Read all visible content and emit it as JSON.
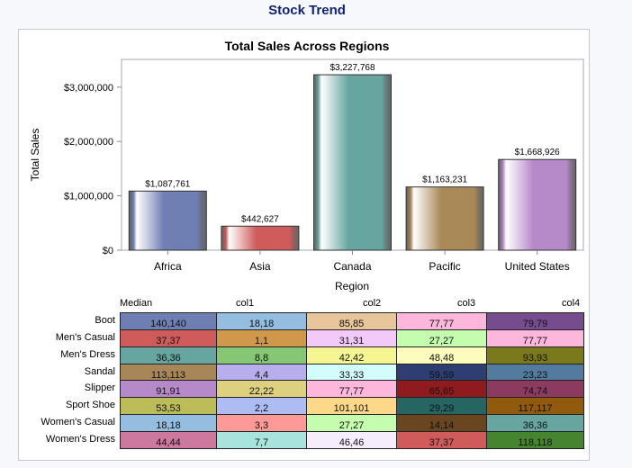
{
  "page_title": "Stock Trend",
  "chart_data": {
    "type": "bar",
    "title": "Total Sales Across Regions",
    "xlabel": "Region",
    "ylabel": "Total Sales",
    "categories": [
      "Africa",
      "Asia",
      "Canada",
      "Pacific",
      "United States"
    ],
    "values": [
      1087761,
      442627,
      3227768,
      1163231,
      1668926
    ],
    "value_labels": [
      "$1,087,761",
      "$442,627",
      "$3,227,768",
      "$1,163,231",
      "$1,668,926"
    ],
    "colors": [
      "#6f7eb3",
      "#d05b5b",
      "#66a5a0",
      "#a98958",
      "#b689c9"
    ],
    "yticks": [
      0,
      1000000,
      2000000,
      3000000
    ],
    "ytick_labels": [
      "$0",
      "$1,000,000",
      "$2,000,000",
      "$3,000,000"
    ],
    "ylim": [
      0,
      3510000
    ],
    "grid": false
  },
  "table": {
    "headers": [
      "Median",
      "col1",
      "col2",
      "col3",
      "col4"
    ],
    "rows": [
      {
        "label": "Boot",
        "cells": [
          "140,140",
          "18,18",
          "85,85",
          "77,77",
          "79,79"
        ],
        "colors": [
          "#6f7eb3",
          "#94bde0",
          "#e8c59a",
          "#fdb7dd",
          "#774c8e"
        ]
      },
      {
        "label": "Men's Casual",
        "cells": [
          "37,37",
          "1,1",
          "31,31",
          "27,27",
          "77,77"
        ],
        "colors": [
          "#d05b5b",
          "#d0984b",
          "#f2c9f9",
          "#c4fdae",
          "#fdb7dd"
        ]
      },
      {
        "label": "Men's Dress",
        "cells": [
          "36,36",
          "8,8",
          "42,42",
          "48,48",
          "93,93"
        ],
        "colors": [
          "#66a5a0",
          "#86c775",
          "#f5f592",
          "#fefcbd",
          "#7a7a1d"
        ]
      },
      {
        "label": "Sandal",
        "cells": [
          "113,113",
          "4,4",
          "33,33",
          "59,59",
          "23,23"
        ],
        "colors": [
          "#a98658",
          "#b7aeee",
          "#d3fcfc",
          "#2e3d72",
          "#537ba0"
        ]
      },
      {
        "label": "Slipper",
        "cells": [
          "91,91",
          "22,22",
          "77,77",
          "65,65",
          "74,74"
        ],
        "colors": [
          "#b689c9",
          "#ddd17f",
          "#fdb7dd",
          "#901b1f",
          "#8c3a5f"
        ]
      },
      {
        "label": "Sport Shoe",
        "cells": [
          "53,53",
          "2,2",
          "101,101",
          "29,29",
          "117,117"
        ],
        "colors": [
          "#bcbc58",
          "#adbcf3",
          "#fdd88b",
          "#256562",
          "#925a0c"
        ]
      },
      {
        "label": "Women's Casual",
        "cells": [
          "18,18",
          "3,3",
          "27,27",
          "14,14",
          "36,36"
        ],
        "colors": [
          "#94bde0",
          "#fd9a98",
          "#c4fdae",
          "#6a4620",
          "#66a5a0"
        ]
      },
      {
        "label": "Women's Dress",
        "cells": [
          "44,44",
          "7,7",
          "46,46",
          "37,37",
          "118,118"
        ],
        "colors": [
          "#cd789d",
          "#a8e4dd",
          "#f5ecfc",
          "#d05b5b",
          "#468530"
        ]
      }
    ]
  }
}
